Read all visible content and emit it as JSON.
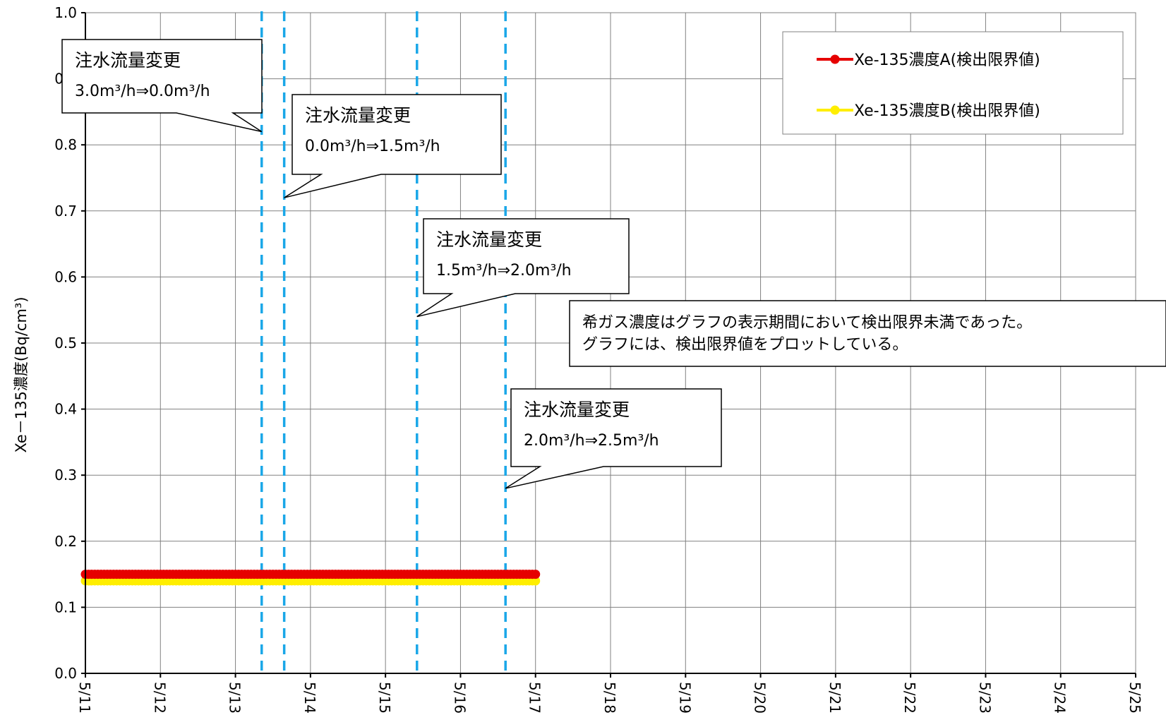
{
  "chart_data": {
    "type": "line",
    "ylabel": "Xe－135濃度(Bq/cm³)",
    "xlabel": "",
    "ylim": [
      0.0,
      1.0
    ],
    "y_ticks": [
      "0.0",
      "0.1",
      "0.2",
      "0.3",
      "0.4",
      "0.5",
      "0.6",
      "0.7",
      "0.8",
      "0.9",
      "1.0"
    ],
    "x_categories": [
      "5/11",
      "5/12",
      "5/13",
      "5/14",
      "5/15",
      "5/16",
      "5/17",
      "5/18",
      "5/19",
      "5/20",
      "5/21",
      "5/22",
      "5/23",
      "5/24",
      "5/25"
    ],
    "grid": true,
    "legend_position": "top-right",
    "series": [
      {
        "name": "Xe-135濃度A(検出限界値)",
        "color": "#e60000",
        "x_start": 0,
        "x_end": 6,
        "value": 0.15
      },
      {
        "name": "Xe-135濃度B(検出限界値)",
        "color": "#ffee00",
        "x_start": 0,
        "x_end": 6,
        "value": 0.14
      }
    ],
    "events": [
      {
        "x": 2.35,
        "title": "注水流量変更",
        "from": "3.0m³/h",
        "to": "0.0m³/h",
        "tip_y": 0.82
      },
      {
        "x": 2.65,
        "title": "注水流量変更",
        "from": "0.0m³/h",
        "to": "1.5m³/h",
        "tip_y": 0.72
      },
      {
        "x": 4.42,
        "title": "注水流量変更",
        "from": "1.5m³/h",
        "to": "2.0m³/h",
        "tip_y": 0.54
      },
      {
        "x": 5.6,
        "title": "注水流量変更",
        "from": "2.0m³/h",
        "to": "2.5m³/h",
        "tip_y": 0.28
      }
    ],
    "event_line_color": "#1aa7e8",
    "note": [
      "希ガス濃度はグラフの表示期間において検出限界未満であった。",
      "グラフには、検出限界値をプロットしている。"
    ]
  }
}
